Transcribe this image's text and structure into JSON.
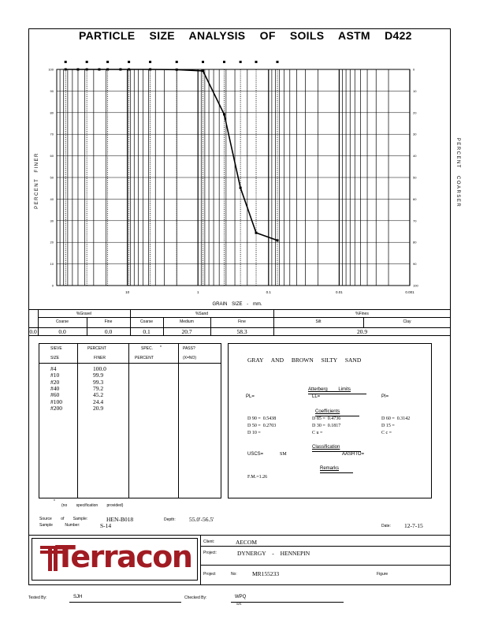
{
  "title": "PARTICLE SIZE ANALYSIS OF SOILS ASTM D422",
  "chart_data": {
    "type": "line",
    "xscale": "log",
    "xdir": "reversed",
    "xlim": [
      100,
      0.001
    ],
    "ylim": [
      0,
      100
    ],
    "ylabel_left": "PERCENT FINER",
    "ylabel_right": "PERCENT COARSER",
    "xlabel": "GRAIN SIZE - mm.",
    "x_ticks": [
      "10",
      "1",
      "0.1",
      "0.01",
      "0.001"
    ],
    "y_ticks_left": [
      "0",
      "10",
      "20",
      "30",
      "40",
      "50",
      "60",
      "70",
      "80",
      "90",
      "100"
    ],
    "y_ticks_right": [
      "100",
      "90",
      "80",
      "70",
      "60",
      "50",
      "40",
      "30",
      "20",
      "10",
      "0"
    ],
    "series": [
      {
        "x": [
          75,
          50,
          37.5,
          25,
          19,
          12.5,
          9.5,
          4.75,
          2.0,
          0.85,
          0.425,
          0.25,
          0.15,
          0.075
        ],
        "y": [
          100,
          100,
          100,
          100,
          100,
          100,
          100,
          100.0,
          99.9,
          99.3,
          79.2,
          45.2,
          24.4,
          20.9
        ]
      }
    ],
    "grid": true
  },
  "fractions": {
    "gravel_label": "%Gravel",
    "sand_label": "%Sand",
    "fines_label": "%Fines",
    "headers": [
      "Coarse",
      "Fine",
      "Coarse",
      "Medium",
      "Fine",
      "Silt",
      "Clay"
    ],
    "cobbles": "0.0",
    "values": [
      "0.0",
      "0.0",
      "0.1",
      "20.7",
      "58.3",
      "20.9"
    ]
  },
  "sieve_table": {
    "col1a": "SIEVE",
    "col1b": "SIZE",
    "col2a": "PERCENT",
    "col2b": "FINER",
    "col3a": "SPEC.",
    "col3star": "*",
    "col3b": "PERCENT",
    "col4a": "PASS?",
    "col4b": "(X=NO)",
    "sizes": [
      "#4",
      "#10",
      "#20",
      "#40",
      "#60",
      "#100",
      "#200"
    ],
    "finer": [
      "100.0",
      "99.9",
      "99.3",
      "79.2",
      "45.2",
      "24.4",
      "20.9"
    ],
    "footnote_star": "*",
    "footnote": "(no specification provided)"
  },
  "soil": {
    "description": "GRAY AND BROWN SILTY SAND",
    "atterberg_title": "Atterberg Limits",
    "pl": "PL=",
    "ll": "LL=",
    "pi": "PI=",
    "coef_title": "Coefficients",
    "d90": "D 90 =  0.5438",
    "d85": "D 85 =  0.4736",
    "d60": "D 60 =  0.3142",
    "d50": "D 50 =  0.2703",
    "d30": "D 30 =  0.1817",
    "d15": "D 15 =",
    "d10": "D 10 =",
    "cu": "C u =",
    "cc": "C c =",
    "class_title": "Classification",
    "uscs_label": "USCS=",
    "uscs": "SM",
    "aashto": "AASHTO=",
    "remarks_title": "Remarks",
    "fm": "F.M.=1.26"
  },
  "sample": {
    "source_label": "Source of Sample:",
    "source": "HEN-B018",
    "number_label": "Sample Number:",
    "number": "S-14",
    "depth_label": "Depth:",
    "depth": "55.0'-56.5'",
    "date_label": "Date:",
    "date": "12-7-15"
  },
  "company": {
    "logo_text": "Terracon",
    "client_label": "Client:",
    "client": "AECOM",
    "project_label": "Project:",
    "project": "DYNERGY - HENNEPIN",
    "projno_label": "Project No:",
    "projno": "MR155233",
    "figure_label": "Figure"
  },
  "footer": {
    "tested_label": "Tested By:",
    "tested": "SJH",
    "checked_label": "Checked By:",
    "checked": "WPQ",
    "checked_sub": "WS"
  }
}
